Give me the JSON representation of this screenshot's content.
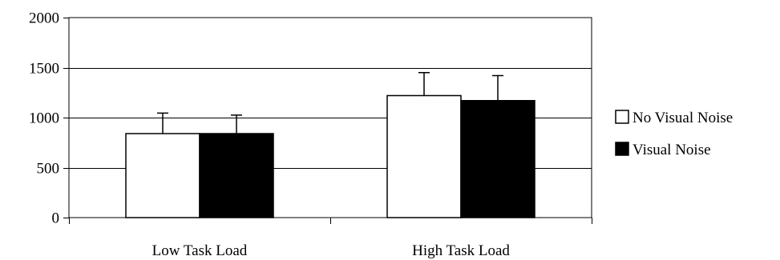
{
  "chart_data": {
    "type": "bar",
    "categories": [
      "Low Task Load",
      "High Task Load"
    ],
    "series": [
      {
        "name": "No Visual Noise",
        "values": [
          840,
          1220
        ],
        "error": [
          205,
          230
        ],
        "color": "#ffffff"
      },
      {
        "name": "Visual Noise",
        "values": [
          840,
          1170
        ],
        "error": [
          185,
          250
        ],
        "color": "#000000"
      }
    ],
    "yticks": [
      "0",
      "500",
      "1000",
      "1500",
      "2000"
    ],
    "ylim": [
      0,
      2000
    ],
    "grid": true,
    "legend": "right"
  }
}
